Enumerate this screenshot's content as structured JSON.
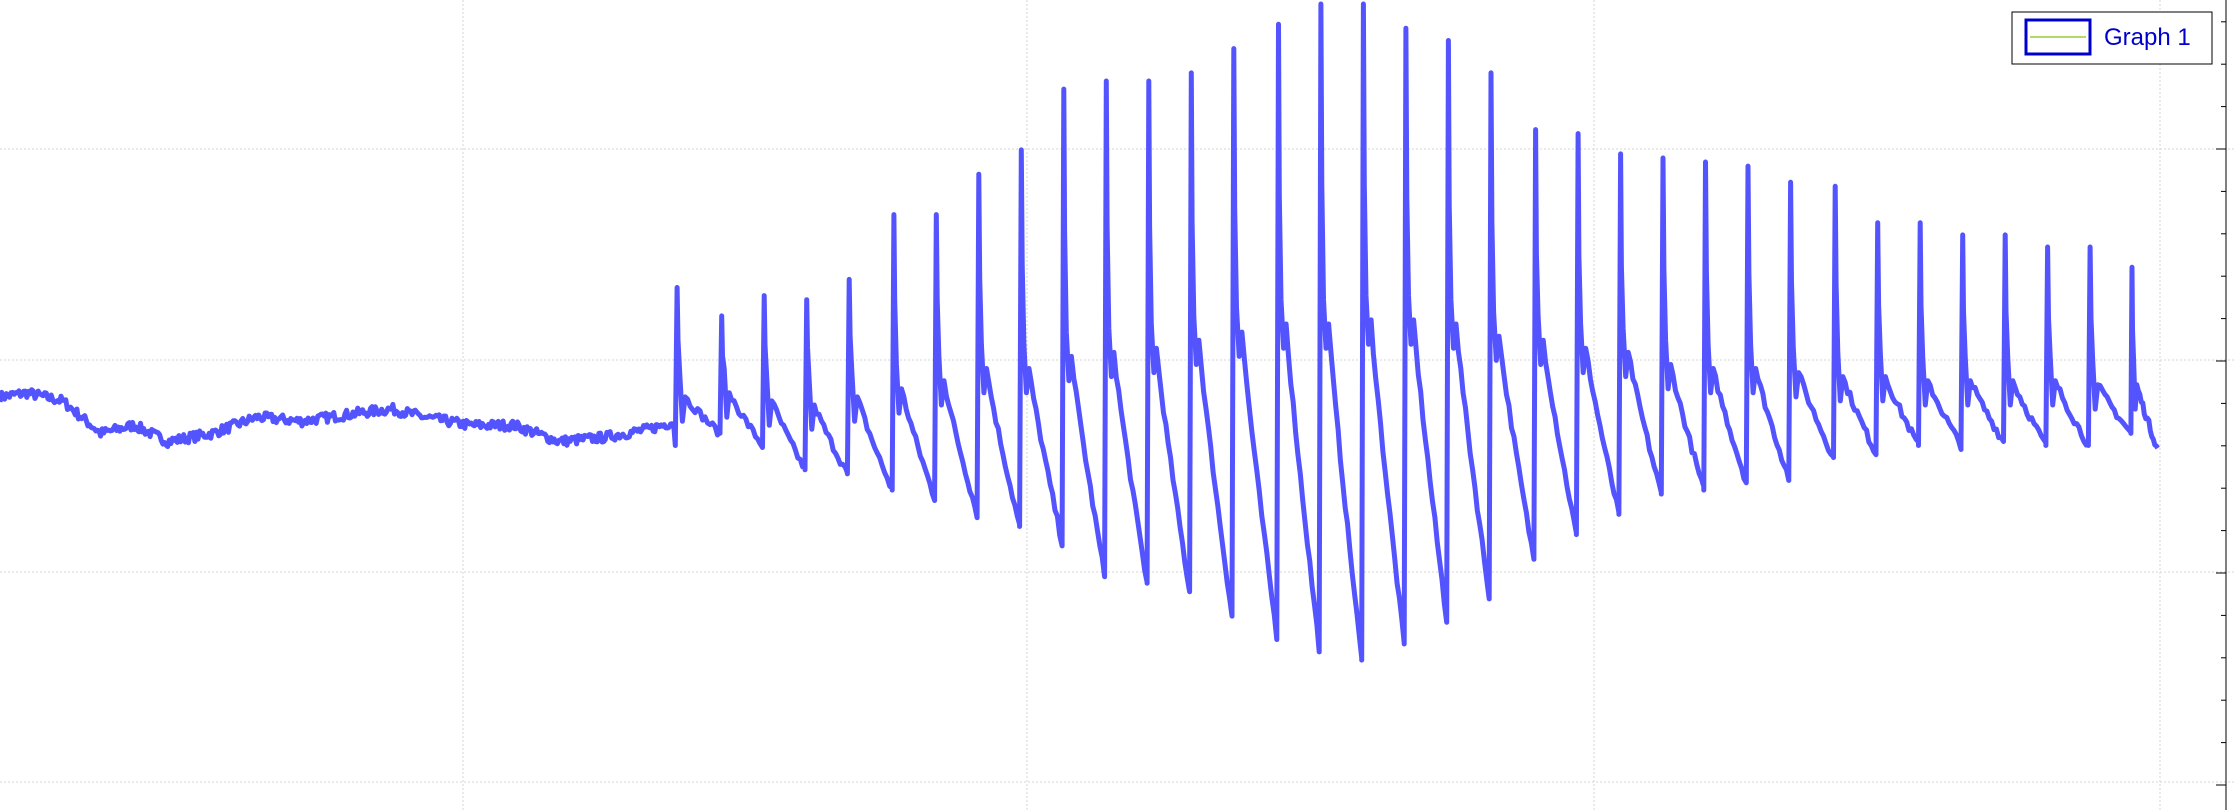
{
  "chart_data": {
    "type": "line",
    "title": "",
    "xlabel": "",
    "ylabel": "",
    "xlim": [
      0,
      1
    ],
    "ylim": [
      -1.0,
      1.0
    ],
    "grid": true,
    "legend_placement": "top-right",
    "colors": {
      "series": "#5454ff",
      "legend_border": "#0000cc",
      "legend_sample_line": "#9acd32",
      "grid": "#d6d6d6",
      "axis": "#000000"
    },
    "legend": {
      "entries": [
        {
          "label": "Graph 1"
        }
      ]
    },
    "series": [
      {
        "name": "Graph 1",
        "baseline": [
          [
            0.0,
            0.02
          ],
          [
            0.012,
            0.03
          ],
          [
            0.028,
            0.01
          ],
          [
            0.045,
            -0.07
          ],
          [
            0.06,
            -0.05
          ],
          [
            0.075,
            -0.09
          ],
          [
            0.095,
            -0.07
          ],
          [
            0.115,
            -0.03
          ],
          [
            0.135,
            -0.04
          ],
          [
            0.16,
            -0.02
          ],
          [
            0.175,
            -0.01
          ],
          [
            0.19,
            -0.03
          ],
          [
            0.21,
            -0.05
          ],
          [
            0.23,
            -0.05
          ],
          [
            0.25,
            -0.09
          ],
          [
            0.27,
            -0.08
          ],
          [
            0.29,
            -0.06
          ],
          [
            0.302,
            -0.04
          ]
        ],
        "cycles": [
          {
            "x": 0.302,
            "peak": 0.29,
            "trough": -0.1,
            "notch": -0.04
          },
          {
            "x": 0.322,
            "peak": 0.22,
            "trough": -0.07,
            "notch": -0.03
          },
          {
            "x": 0.341,
            "peak": 0.27,
            "trough": -0.1,
            "notch": -0.05
          },
          {
            "x": 0.36,
            "peak": 0.26,
            "trough": -0.16,
            "notch": -0.06
          },
          {
            "x": 0.379,
            "peak": 0.31,
            "trough": -0.17,
            "notch": -0.04
          },
          {
            "x": 0.399,
            "peak": 0.47,
            "trough": -0.21,
            "notch": -0.02
          },
          {
            "x": 0.418,
            "peak": 0.47,
            "trough": -0.23,
            "notch": 0.0
          },
          {
            "x": 0.437,
            "peak": 0.57,
            "trough": -0.27,
            "notch": 0.03
          },
          {
            "x": 0.456,
            "peak": 0.63,
            "trough": -0.3,
            "notch": 0.03
          },
          {
            "x": 0.475,
            "peak": 0.78,
            "trough": -0.34,
            "notch": 0.06
          },
          {
            "x": 0.494,
            "peak": 0.8,
            "trough": -0.42,
            "notch": 0.07
          },
          {
            "x": 0.513,
            "peak": 0.8,
            "trough": -0.44,
            "notch": 0.08
          },
          {
            "x": 0.532,
            "peak": 0.82,
            "trough": -0.46,
            "notch": 0.1
          },
          {
            "x": 0.551,
            "peak": 0.88,
            "trough": -0.52,
            "notch": 0.12
          },
          {
            "x": 0.571,
            "peak": 0.94,
            "trough": -0.57,
            "notch": 0.14
          },
          {
            "x": 0.59,
            "peak": 0.99,
            "trough": -0.6,
            "notch": 0.14
          },
          {
            "x": 0.609,
            "peak": 0.99,
            "trough": -0.63,
            "notch": 0.15
          },
          {
            "x": 0.628,
            "peak": 0.93,
            "trough": -0.59,
            "notch": 0.15
          },
          {
            "x": 0.647,
            "peak": 0.9,
            "trough": -0.53,
            "notch": 0.14
          },
          {
            "x": 0.666,
            "peak": 0.82,
            "trough": -0.47,
            "notch": 0.11
          },
          {
            "x": 0.686,
            "peak": 0.68,
            "trough": -0.38,
            "notch": 0.1
          },
          {
            "x": 0.705,
            "peak": 0.67,
            "trough": -0.32,
            "notch": 0.08
          },
          {
            "x": 0.724,
            "peak": 0.62,
            "trough": -0.27,
            "notch": 0.07
          },
          {
            "x": 0.743,
            "peak": 0.61,
            "trough": -0.22,
            "notch": 0.04
          },
          {
            "x": 0.762,
            "peak": 0.6,
            "trough": -0.21,
            "notch": 0.03
          },
          {
            "x": 0.781,
            "peak": 0.59,
            "trough": -0.19,
            "notch": 0.03
          },
          {
            "x": 0.8,
            "peak": 0.55,
            "trough": -0.18,
            "notch": 0.02
          },
          {
            "x": 0.82,
            "peak": 0.54,
            "trough": -0.13,
            "notch": 0.01
          },
          {
            "x": 0.839,
            "peak": 0.45,
            "trough": -0.12,
            "notch": 0.01
          },
          {
            "x": 0.858,
            "peak": 0.45,
            "trough": -0.1,
            "notch": 0.0
          },
          {
            "x": 0.877,
            "peak": 0.42,
            "trough": -0.1,
            "notch": 0.0
          },
          {
            "x": 0.896,
            "peak": 0.42,
            "trough": -0.09,
            "notch": 0.0
          },
          {
            "x": 0.915,
            "peak": 0.39,
            "trough": -0.1,
            "notch": 0.0
          },
          {
            "x": 0.934,
            "peak": 0.39,
            "trough": -0.1,
            "notch": -0.01
          },
          {
            "x": 0.953,
            "peak": 0.34,
            "trough": -0.07,
            "notch": -0.01
          }
        ],
        "end_x": 0.965,
        "end_y": -0.11
      }
    ]
  }
}
